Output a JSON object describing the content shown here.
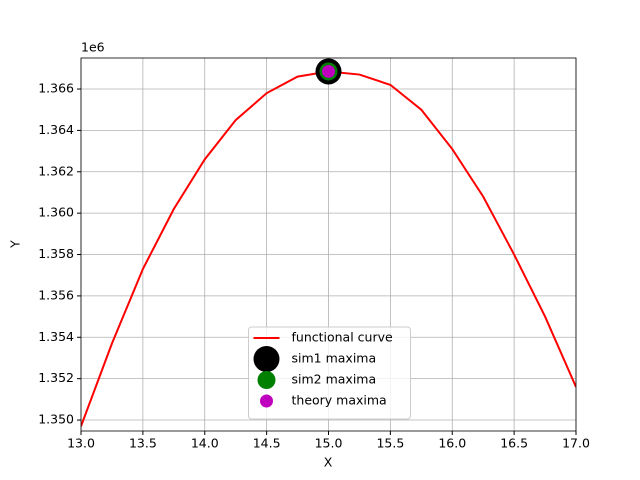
{
  "chart_data": {
    "type": "line",
    "x_label": "X",
    "y_label": "Y",
    "y_offset_label": "1e6",
    "xlim": [
      13,
      17
    ],
    "xticks": [
      {
        "value": 13,
        "label": "13.0"
      },
      {
        "value": 13.5,
        "label": "13.5"
      },
      {
        "value": 14,
        "label": "14.0"
      },
      {
        "value": 14.5,
        "label": "14.5"
      },
      {
        "value": 15,
        "label": "15.0"
      },
      {
        "value": 15.5,
        "label": "15.5"
      },
      {
        "value": 16,
        "label": "16.0"
      },
      {
        "value": 16.5,
        "label": "16.5"
      },
      {
        "value": 17,
        "label": "17.0"
      }
    ],
    "ylim": [
      1349470,
      1367500
    ],
    "yticks": [
      {
        "value": 1350000,
        "label": "1.350"
      },
      {
        "value": 1352000,
        "label": "1.352"
      },
      {
        "value": 1354000,
        "label": "1.354"
      },
      {
        "value": 1356000,
        "label": "1.356"
      },
      {
        "value": 1358000,
        "label": "1.358"
      },
      {
        "value": 1360000,
        "label": "1.360"
      },
      {
        "value": 1362000,
        "label": "1.362"
      },
      {
        "value": 1364000,
        "label": "1.364"
      },
      {
        "value": 1366000,
        "label": "1.366"
      }
    ],
    "grid": true,
    "legend": "lower center",
    "series": [
      {
        "name": "functional curve",
        "color": "#ff0000",
        "kind": "line",
        "x": [
          13,
          13.25,
          13.5,
          13.75,
          14,
          14.25,
          14.5,
          14.75,
          15,
          15.25,
          15.5,
          15.75,
          16,
          16.25,
          16.5,
          16.75,
          17
        ],
        "values": [
          1349700,
          1353700,
          1357300,
          1360200,
          1362600,
          1364500,
          1365800,
          1366600,
          1366850,
          1366700,
          1366200,
          1365000,
          1363100,
          1360800,
          1358000,
          1355000,
          1351600
        ]
      },
      {
        "name": "sim1 maxima",
        "color": "#000000",
        "kind": "point",
        "size": 13,
        "x": [
          15
        ],
        "values": [
          1366850
        ]
      },
      {
        "name": "sim2 maxima",
        "color": "#008000",
        "kind": "point",
        "size": 9,
        "x": [
          15
        ],
        "values": [
          1366850
        ]
      },
      {
        "name": "theory maxima",
        "color": "#bf00bf",
        "kind": "point",
        "size": 6.5,
        "x": [
          15
        ],
        "values": [
          1366850
        ]
      }
    ]
  }
}
